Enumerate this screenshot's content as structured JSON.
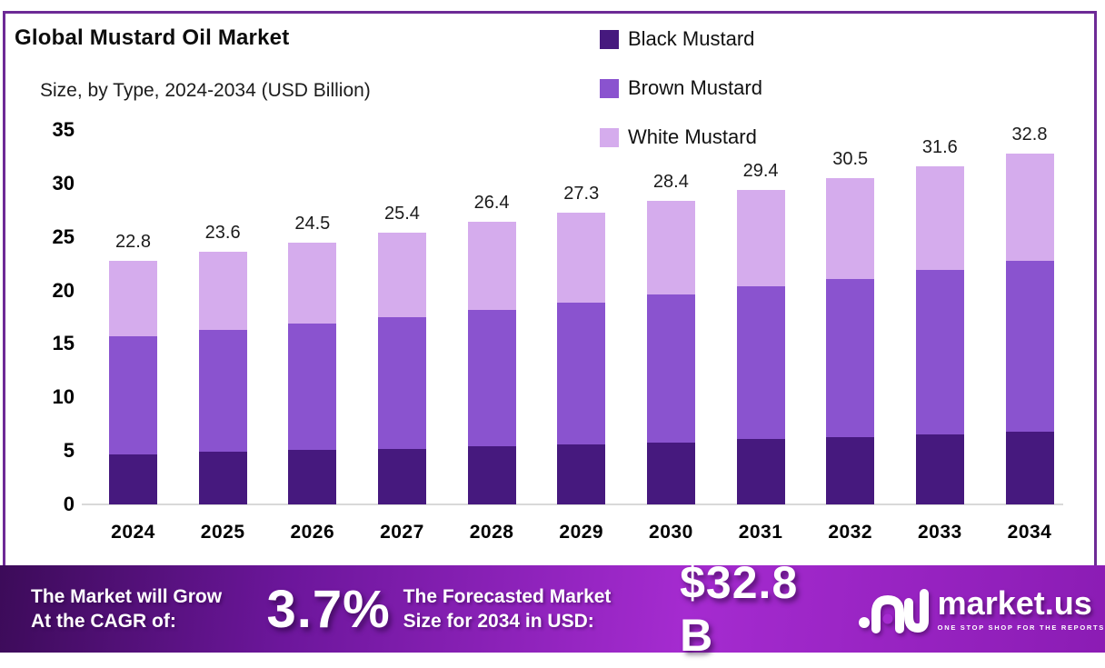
{
  "frame": {
    "border_color": "#6d2a96"
  },
  "header": {
    "title": "Global Mustard Oil Market",
    "subtitle": "Size, by Type, 2024-2034 (USD Billion)"
  },
  "legend": {
    "items": [
      {
        "label": "Black Mustard",
        "color": "#46197e"
      },
      {
        "label": "Brown Mustard",
        "color": "#8a53cf"
      },
      {
        "label": "White Mustard",
        "color": "#d5aced"
      }
    ]
  },
  "chart_data": {
    "type": "bar",
    "stacked": true,
    "title": "Global Mustard Oil Market Size, by Type, 2024-2034 (USD Billion)",
    "categories": [
      "2024",
      "2025",
      "2026",
      "2027",
      "2028",
      "2029",
      "2030",
      "2031",
      "2032",
      "2033",
      "2034"
    ],
    "series": [
      {
        "name": "Black Mustard",
        "color": "#46197e",
        "values": [
          4.7,
          4.9,
          5.1,
          5.2,
          5.4,
          5.6,
          5.8,
          6.1,
          6.3,
          6.5,
          6.8
        ]
      },
      {
        "name": "Brown Mustard",
        "color": "#8a53cf",
        "values": [
          11.0,
          11.4,
          11.8,
          12.3,
          12.8,
          13.3,
          13.8,
          14.3,
          14.8,
          15.4,
          16.0
        ]
      },
      {
        "name": "White Mustard",
        "color": "#d5aced",
        "values": [
          7.1,
          7.3,
          7.6,
          7.9,
          8.2,
          8.4,
          8.8,
          9.0,
          9.4,
          9.7,
          10.0
        ]
      }
    ],
    "totals": [
      22.8,
      23.6,
      24.5,
      25.4,
      26.4,
      27.3,
      28.4,
      29.4,
      30.5,
      31.6,
      32.8
    ],
    "xlabel": "",
    "ylabel": "",
    "ylim": [
      0,
      35
    ],
    "yticks": [
      0,
      5,
      10,
      15,
      20,
      25,
      30,
      35
    ],
    "grid": false,
    "legend_position": "top-right"
  },
  "footer": {
    "cagr_line1": "The Market will Grow",
    "cagr_line2": "At the CAGR of:",
    "cagr_value": "3.7%",
    "forecast_line1": "The Forecasted Market",
    "forecast_line2": "Size for 2034 in USD:",
    "forecast_value": "$32.8 B",
    "brand_name": "market.us",
    "brand_tagline": "ONE STOP SHOP FOR THE REPORTS"
  }
}
